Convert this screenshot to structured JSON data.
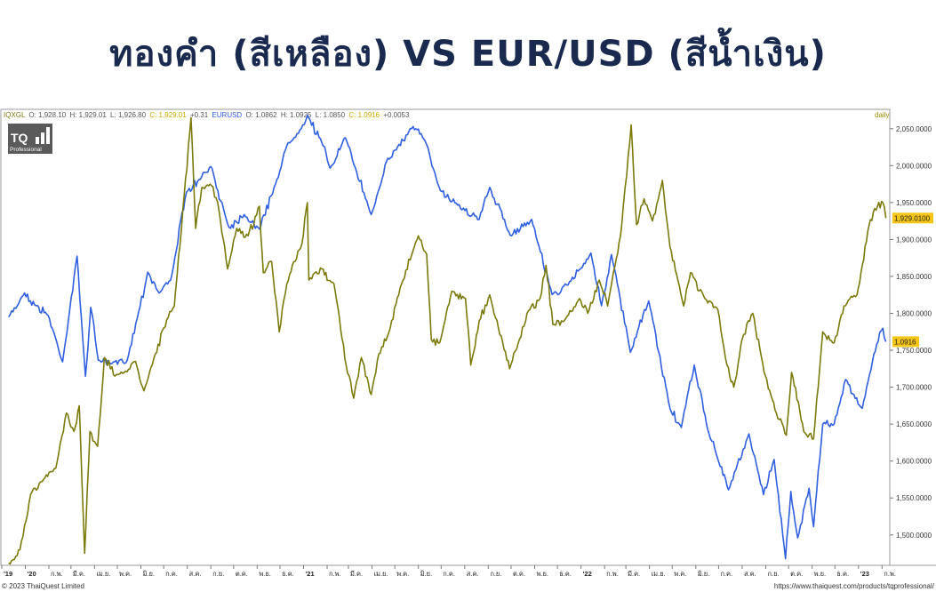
{
  "headline": "ทองคำ (สีเหลือง) VS EUR/USD (สีน้ำเงิน)",
  "quote_line": {
    "gold_symbol": "IQXGL",
    "gold_o": "O: 1,928.10",
    "gold_h": "H: 1,929.01",
    "gold_l": "L: 1,926.80",
    "gold_c": "C: 1,929.01",
    "gold_change": "+0.31",
    "eur_symbol": "EURUSD",
    "eur_o": "O: 1.0862",
    "eur_h": "H: 1.0925",
    "eur_l": "L: 1.0850",
    "eur_c": "C: 1.0916",
    "eur_change": "+0.0053"
  },
  "interval": "daily",
  "logo": {
    "text": "TQ",
    "subtext": "Professional"
  },
  "footer": {
    "copyright": "© 2023 ThaiQuest Limited",
    "url": "https://www.thaiquest.com/products/tqprofessional/"
  },
  "colors": {
    "gold": "#7a7a0a",
    "eurusd": "#2f5fe0",
    "last_badge": "#f5c518",
    "headline": "#1a2a4f"
  },
  "chart_data": {
    "type": "line",
    "yaxis_ticks": [
      "2,050.0000",
      "2,000.0000",
      "1,950.0000",
      "1,900.0000",
      "1,850.0000",
      "1,800.0000",
      "1,750.0000",
      "1,700.0000",
      "1,650.0000",
      "1,600.0000",
      "1,550.0000",
      "1,500.0000"
    ],
    "ylim": [
      1460,
      2075
    ],
    "x_tick_labels": [
      "'19",
      "'20",
      "ก.พ.",
      "มี.ค.",
      "เม.ย.",
      "พ.ค.",
      "มิ.ย.",
      "ก.ค.",
      "ส.ค.",
      "ก.ย.",
      "ต.ค.",
      "พ.ย.",
      "ธ.ค.",
      "'21",
      "ก.พ.",
      "มี.ค.",
      "เม.ย.",
      "พ.ค.",
      "มิ.ย.",
      "ก.ค.",
      "ส.ค.",
      "ก.ย.",
      "ต.ค.",
      "พ.ย.",
      "ธ.ค.",
      "'22",
      "ก.พ.",
      "มี.ค.",
      "เม.ย.",
      "พ.ค.",
      "มิ.ย.",
      "ก.ค.",
      "ส.ค.",
      "ก.ย.",
      "ต.ค.",
      "พ.ย.",
      "ธ.ค.",
      "'23",
      "ก.พ."
    ],
    "x_months": [
      "2019-12",
      "2020-01",
      "2020-02",
      "2020-03",
      "2020-04",
      "2020-05",
      "2020-06",
      "2020-07",
      "2020-08",
      "2020-09",
      "2020-10",
      "2020-11",
      "2020-12",
      "2021-01",
      "2021-02",
      "2021-03",
      "2021-04",
      "2021-05",
      "2021-06",
      "2021-07",
      "2021-08",
      "2021-09",
      "2021-10",
      "2021-11",
      "2021-12",
      "2022-01",
      "2022-02",
      "2022-03",
      "2022-04",
      "2022-05",
      "2022-06",
      "2022-07",
      "2022-08",
      "2022-09",
      "2022-10",
      "2022-11",
      "2022-12",
      "2023-01",
      "2023-02"
    ],
    "series": [
      {
        "name": "IQXGL",
        "color": "#7a7a0a",
        "last_label": "1,929.0100",
        "points": [
          [
            "2019-12-10",
            1462
          ],
          [
            "2019-12-25",
            1480
          ],
          [
            "2020-01-08",
            1555
          ],
          [
            "2020-01-25",
            1575
          ],
          [
            "2020-02-10",
            1590
          ],
          [
            "2020-02-24",
            1665
          ],
          [
            "2020-03-05",
            1640
          ],
          [
            "2020-03-12",
            1675
          ],
          [
            "2020-03-19",
            1475
          ],
          [
            "2020-03-26",
            1640
          ],
          [
            "2020-04-05",
            1620
          ],
          [
            "2020-04-14",
            1740
          ],
          [
            "2020-04-28",
            1715
          ],
          [
            "2020-05-10",
            1720
          ],
          [
            "2020-05-25",
            1735
          ],
          [
            "2020-06-05",
            1695
          ],
          [
            "2020-06-20",
            1745
          ],
          [
            "2020-07-01",
            1780
          ],
          [
            "2020-07-15",
            1810
          ],
          [
            "2020-07-28",
            1960
          ],
          [
            "2020-08-06",
            2065
          ],
          [
            "2020-08-12",
            1915
          ],
          [
            "2020-08-20",
            1970
          ],
          [
            "2020-08-31",
            1975
          ],
          [
            "2020-09-10",
            1950
          ],
          [
            "2020-09-23",
            1860
          ],
          [
            "2020-10-05",
            1915
          ],
          [
            "2020-10-20",
            1905
          ],
          [
            "2020-11-04",
            1945
          ],
          [
            "2020-11-09",
            1855
          ],
          [
            "2020-11-20",
            1870
          ],
          [
            "2020-11-30",
            1775
          ],
          [
            "2020-12-10",
            1840
          ],
          [
            "2020-12-30",
            1895
          ],
          [
            "2021-01-06",
            1950
          ],
          [
            "2021-01-08",
            1845
          ],
          [
            "2021-01-25",
            1860
          ],
          [
            "2021-02-10",
            1840
          ],
          [
            "2021-02-26",
            1730
          ],
          [
            "2021-03-08",
            1685
          ],
          [
            "2021-03-18",
            1740
          ],
          [
            "2021-03-31",
            1690
          ],
          [
            "2021-04-10",
            1745
          ],
          [
            "2021-04-25",
            1780
          ],
          [
            "2021-05-10",
            1840
          ],
          [
            "2021-05-25",
            1885
          ],
          [
            "2021-06-01",
            1905
          ],
          [
            "2021-06-12",
            1880
          ],
          [
            "2021-06-18",
            1765
          ],
          [
            "2021-06-29",
            1760
          ],
          [
            "2021-07-15",
            1830
          ],
          [
            "2021-08-02",
            1820
          ],
          [
            "2021-08-09",
            1730
          ],
          [
            "2021-08-20",
            1790
          ],
          [
            "2021-09-03",
            1825
          ],
          [
            "2021-09-20",
            1760
          ],
          [
            "2021-09-29",
            1725
          ],
          [
            "2021-10-12",
            1765
          ],
          [
            "2021-10-22",
            1800
          ],
          [
            "2021-11-08",
            1820
          ],
          [
            "2021-11-16",
            1865
          ],
          [
            "2021-11-25",
            1785
          ],
          [
            "2021-12-10",
            1790
          ],
          [
            "2021-12-30",
            1820
          ],
          [
            "2022-01-10",
            1800
          ],
          [
            "2022-01-25",
            1845
          ],
          [
            "2022-02-05",
            1810
          ],
          [
            "2022-02-22",
            1905
          ],
          [
            "2022-03-08",
            2055
          ],
          [
            "2022-03-15",
            1920
          ],
          [
            "2022-03-25",
            1955
          ],
          [
            "2022-04-05",
            1925
          ],
          [
            "2022-04-18",
            1980
          ],
          [
            "2022-04-28",
            1890
          ],
          [
            "2022-05-16",
            1810
          ],
          [
            "2022-05-25",
            1855
          ],
          [
            "2022-06-13",
            1820
          ],
          [
            "2022-06-30",
            1805
          ],
          [
            "2022-07-12",
            1730
          ],
          [
            "2022-07-21",
            1700
          ],
          [
            "2022-08-01",
            1765
          ],
          [
            "2022-08-15",
            1800
          ],
          [
            "2022-08-30",
            1720
          ],
          [
            "2022-09-15",
            1665
          ],
          [
            "2022-09-28",
            1635
          ],
          [
            "2022-10-05",
            1720
          ],
          [
            "2022-10-21",
            1640
          ],
          [
            "2022-11-03",
            1630
          ],
          [
            "2022-11-15",
            1775
          ],
          [
            "2022-11-30",
            1760
          ],
          [
            "2022-12-13",
            1810
          ],
          [
            "2022-12-30",
            1825
          ],
          [
            "2023-01-15",
            1920
          ],
          [
            "2023-01-26",
            1945
          ],
          [
            "2023-02-02",
            1950
          ],
          [
            "2023-02-06",
            1929
          ]
        ]
      },
      {
        "name": "EURUSD",
        "color": "#2f5fe0",
        "last_label": "1.0916",
        "points": [
          [
            "2019-12-10",
            1.107
          ],
          [
            "2019-12-31",
            1.122
          ],
          [
            "2020-01-15",
            1.114
          ],
          [
            "2020-01-31",
            1.108
          ],
          [
            "2020-02-19",
            1.079
          ],
          [
            "2020-03-09",
            1.145
          ],
          [
            "2020-03-20",
            1.07
          ],
          [
            "2020-03-27",
            1.113
          ],
          [
            "2020-04-06",
            1.08
          ],
          [
            "2020-04-24",
            1.078
          ],
          [
            "2020-05-14",
            1.08
          ],
          [
            "2020-05-29",
            1.11
          ],
          [
            "2020-06-10",
            1.135
          ],
          [
            "2020-06-25",
            1.122
          ],
          [
            "2020-07-10",
            1.13
          ],
          [
            "2020-07-31",
            1.185
          ],
          [
            "2020-08-18",
            1.193
          ],
          [
            "2020-09-01",
            1.201
          ],
          [
            "2020-09-25",
            1.163
          ],
          [
            "2020-10-15",
            1.171
          ],
          [
            "2020-11-04",
            1.162
          ],
          [
            "2020-11-25",
            1.19
          ],
          [
            "2020-12-10",
            1.214
          ],
          [
            "2020-12-31",
            1.227
          ],
          [
            "2021-01-06",
            1.233
          ],
          [
            "2021-01-25",
            1.216
          ],
          [
            "2021-02-05",
            1.2
          ],
          [
            "2021-02-25",
            1.219
          ],
          [
            "2021-03-31",
            1.171
          ],
          [
            "2021-04-20",
            1.204
          ],
          [
            "2021-05-25",
            1.226
          ],
          [
            "2021-06-10",
            1.217
          ],
          [
            "2021-06-30",
            1.186
          ],
          [
            "2021-07-21",
            1.178
          ],
          [
            "2021-08-20",
            1.168
          ],
          [
            "2021-09-03",
            1.188
          ],
          [
            "2021-09-30",
            1.158
          ],
          [
            "2021-10-28",
            1.168
          ],
          [
            "2021-11-24",
            1.121
          ],
          [
            "2021-12-15",
            1.127
          ],
          [
            "2022-01-14",
            1.147
          ],
          [
            "2022-01-28",
            1.114
          ],
          [
            "2022-02-10",
            1.146
          ],
          [
            "2022-03-07",
            1.085
          ],
          [
            "2022-03-31",
            1.117
          ],
          [
            "2022-04-28",
            1.05
          ],
          [
            "2022-05-13",
            1.038
          ],
          [
            "2022-05-30",
            1.077
          ],
          [
            "2022-06-15",
            1.04
          ],
          [
            "2022-07-14",
            0.999
          ],
          [
            "2022-08-10",
            1.034
          ],
          [
            "2022-08-29",
            0.996
          ],
          [
            "2022-09-12",
            1.018
          ],
          [
            "2022-09-27",
            0.956
          ],
          [
            "2022-10-04",
            0.998
          ],
          [
            "2022-10-13",
            0.969
          ],
          [
            "2022-10-28",
            1.0
          ],
          [
            "2022-11-03",
            0.976
          ],
          [
            "2022-11-15",
            1.04
          ],
          [
            "2022-11-30",
            1.04
          ],
          [
            "2022-12-15",
            1.068
          ],
          [
            "2023-01-06",
            1.05
          ],
          [
            "2023-01-25",
            1.09
          ],
          [
            "2023-02-02",
            1.1
          ],
          [
            "2023-02-06",
            1.0916
          ]
        ]
      }
    ],
    "eurusd_visual_scale": [
      [
        1.107,
        1795
      ],
      [
        1.233,
        2068
      ]
    ]
  }
}
